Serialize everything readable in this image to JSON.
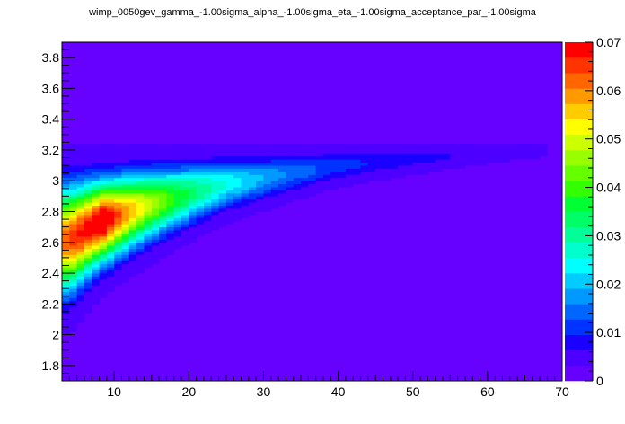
{
  "chart_data": {
    "type": "heatmap",
    "title": "wimp_0050gev_gamma_-1.00sigma_alpha_-1.00sigma_eta_-1.00sigma_acceptance_par_-1.00sigma",
    "xlabel": "",
    "ylabel": "",
    "xlim": [
      3,
      70
    ],
    "ylim": [
      1.7,
      3.9
    ],
    "x_ticks": [
      "10",
      "20",
      "30",
      "40",
      "50",
      "60",
      "70"
    ],
    "y_ticks": [
      "1.8",
      "2",
      "2.2",
      "2.4",
      "2.6",
      "2.8",
      "3",
      "3.2",
      "3.4",
      "3.6",
      "3.8"
    ],
    "zlim": [
      0,
      0.07
    ],
    "z_ticks": [
      "0",
      "0.01",
      "0.02",
      "0.03",
      "0.04",
      "0.05",
      "0.06",
      "0.07"
    ],
    "grid": false,
    "band": {
      "description_points": [
        {
          "x": 4,
          "y_center": 2.62,
          "y_half_width": 0.38
        },
        {
          "x": 8,
          "y_center": 2.73,
          "y_half_width": 0.3
        },
        {
          "x": 15,
          "y_center": 2.85,
          "y_half_width": 0.25
        },
        {
          "x": 25,
          "y_center": 2.98,
          "y_half_width": 0.18
        },
        {
          "x": 40,
          "y_center": 3.1,
          "y_half_width": 0.12
        },
        {
          "x": 55,
          "y_center": 3.16,
          "y_half_width": 0.08
        },
        {
          "x": 70,
          "y_center": 3.2,
          "y_half_width": 0.03
        }
      ],
      "peak": {
        "x": 8,
        "y": 2.7,
        "z": 0.07
      }
    },
    "palette": [
      "#6600ff",
      "#4d00ff",
      "#1a00ff",
      "#0033ff",
      "#0066ff",
      "#0099ff",
      "#00ccff",
      "#00ffff",
      "#00ffcc",
      "#00ff99",
      "#00ff66",
      "#00ff33",
      "#33ff00",
      "#66ff00",
      "#99ff00",
      "#ccff00",
      "#ffff00",
      "#ffcc00",
      "#ff9900",
      "#ff6600",
      "#ff3300",
      "#ff0000"
    ]
  }
}
